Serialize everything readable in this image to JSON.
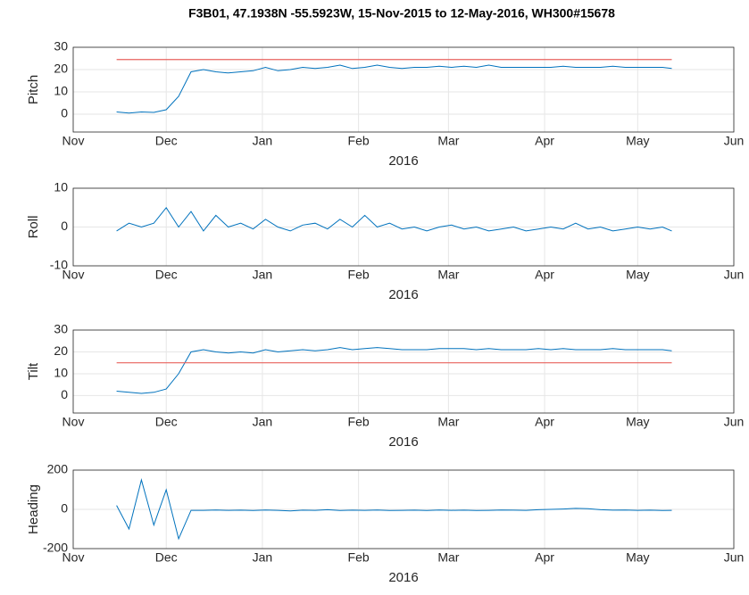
{
  "chart_data": [
    {
      "type": "line",
      "title": "F3B01, 47.1938N -55.5923W, 15-Nov-2015 to 12-May-2016, WH300#15678",
      "ylabel": "Pitch",
      "xlabel": "2016",
      "x": [
        14,
        18,
        22,
        26,
        30,
        34,
        38,
        42,
        46,
        50,
        54,
        58,
        62,
        66,
        70,
        74,
        78,
        82,
        86,
        90,
        94,
        98,
        102,
        106,
        110,
        114,
        118,
        122,
        126,
        130,
        134,
        138,
        142,
        146,
        150,
        154,
        158,
        162,
        166,
        170,
        174,
        178,
        182,
        186,
        190,
        193
      ],
      "series": [
        {
          "color": "#0072bd",
          "values": [
            1,
            0.5,
            1,
            0.8,
            2,
            8,
            19,
            20,
            19,
            18.5,
            19,
            19.5,
            21,
            19.5,
            20,
            21,
            20.5,
            21,
            22,
            20.5,
            21,
            22,
            21,
            20.5,
            21,
            21,
            21.5,
            21,
            21.5,
            21,
            22,
            21,
            21,
            21,
            21,
            21,
            21.5,
            21,
            21,
            21,
            21.5,
            21,
            21,
            21,
            21,
            20.5
          ]
        }
      ],
      "hline": {
        "value": 24.5,
        "color": "#e8625e"
      },
      "xlim": [
        0,
        213
      ],
      "xticks": [
        {
          "value": 0,
          "label": "Nov"
        },
        {
          "value": 30,
          "label": "Dec"
        },
        {
          "value": 61,
          "label": "Jan"
        },
        {
          "value": 92,
          "label": "Feb"
        },
        {
          "value": 121,
          "label": "Mar"
        },
        {
          "value": 152,
          "label": "Apr"
        },
        {
          "value": 182,
          "label": "May"
        },
        {
          "value": 213,
          "label": "Jun"
        }
      ],
      "ylim": [
        -8,
        30
      ],
      "yticks": [
        0,
        10,
        20,
        30
      ],
      "grid": true
    },
    {
      "type": "line",
      "ylabel": "Roll",
      "xlabel": "2016",
      "x": [
        14,
        18,
        22,
        26,
        30,
        34,
        38,
        42,
        46,
        50,
        54,
        58,
        62,
        66,
        70,
        74,
        78,
        82,
        86,
        90,
        94,
        98,
        102,
        106,
        110,
        114,
        118,
        122,
        126,
        130,
        134,
        138,
        142,
        146,
        150,
        154,
        158,
        162,
        166,
        170,
        174,
        178,
        182,
        186,
        190,
        193
      ],
      "series": [
        {
          "color": "#0072bd",
          "values": [
            -1,
            1,
            0,
            1,
            5,
            0,
            4,
            -1,
            3,
            0,
            1,
            -0.5,
            2,
            0,
            -1,
            0.5,
            1,
            -0.5,
            2,
            0,
            3,
            0,
            1,
            -0.5,
            0,
            -1,
            0,
            0.5,
            -0.5,
            0,
            -1,
            -0.5,
            0,
            -1,
            -0.5,
            0,
            -0.5,
            1,
            -0.5,
            0,
            -1,
            -0.5,
            0,
            -0.5,
            0,
            -1
          ]
        }
      ],
      "xlim": [
        0,
        213
      ],
      "xticks": [
        {
          "value": 0,
          "label": "Nov"
        },
        {
          "value": 30,
          "label": "Dec"
        },
        {
          "value": 61,
          "label": "Jan"
        },
        {
          "value": 92,
          "label": "Feb"
        },
        {
          "value": 121,
          "label": "Mar"
        },
        {
          "value": 152,
          "label": "Apr"
        },
        {
          "value": 182,
          "label": "May"
        },
        {
          "value": 213,
          "label": "Jun"
        }
      ],
      "ylim": [
        -10,
        10
      ],
      "yticks": [
        -10,
        0,
        10
      ],
      "grid": true
    },
    {
      "type": "line",
      "ylabel": "Tilt",
      "xlabel": "2016",
      "x": [
        14,
        18,
        22,
        26,
        30,
        34,
        38,
        42,
        46,
        50,
        54,
        58,
        62,
        66,
        70,
        74,
        78,
        82,
        86,
        90,
        94,
        98,
        102,
        106,
        110,
        114,
        118,
        122,
        126,
        130,
        134,
        138,
        142,
        146,
        150,
        154,
        158,
        162,
        166,
        170,
        174,
        178,
        182,
        186,
        190,
        193
      ],
      "series": [
        {
          "color": "#0072bd",
          "values": [
            2,
            1.5,
            1,
            1.5,
            3,
            10,
            20,
            21,
            20,
            19.5,
            20,
            19.5,
            21,
            20,
            20.5,
            21,
            20.5,
            21,
            22,
            21,
            21.5,
            22,
            21.5,
            21,
            21,
            21,
            21.5,
            21.5,
            21.5,
            21,
            21.5,
            21,
            21,
            21,
            21.5,
            21,
            21.5,
            21,
            21,
            21,
            21.5,
            21,
            21,
            21,
            21,
            20.5
          ]
        }
      ],
      "hline": {
        "value": 15,
        "color": "#e8625e"
      },
      "xlim": [
        0,
        213
      ],
      "xticks": [
        {
          "value": 0,
          "label": "Nov"
        },
        {
          "value": 30,
          "label": "Dec"
        },
        {
          "value": 61,
          "label": "Jan"
        },
        {
          "value": 92,
          "label": "Feb"
        },
        {
          "value": 121,
          "label": "Mar"
        },
        {
          "value": 152,
          "label": "Apr"
        },
        {
          "value": 182,
          "label": "May"
        },
        {
          "value": 213,
          "label": "Jun"
        }
      ],
      "ylim": [
        -8,
        30
      ],
      "yticks": [
        0,
        10,
        20,
        30
      ],
      "grid": true
    },
    {
      "type": "line",
      "ylabel": "Heading",
      "xlabel": "2016",
      "x": [
        14,
        18,
        22,
        26,
        30,
        34,
        38,
        42,
        46,
        50,
        54,
        58,
        62,
        66,
        70,
        74,
        78,
        82,
        86,
        90,
        94,
        98,
        102,
        106,
        110,
        114,
        118,
        122,
        126,
        130,
        134,
        138,
        142,
        146,
        150,
        154,
        158,
        162,
        166,
        170,
        174,
        178,
        182,
        186,
        190,
        193
      ],
      "series": [
        {
          "color": "#0072bd",
          "values": [
            20,
            -100,
            150,
            -80,
            100,
            -150,
            -5,
            -5,
            -3,
            -5,
            -4,
            -6,
            -3,
            -5,
            -8,
            -4,
            -5,
            -2,
            -6,
            -4,
            -5,
            -3,
            -6,
            -5,
            -4,
            -6,
            -3,
            -5,
            -4,
            -6,
            -5,
            -3,
            -4,
            -5,
            -2,
            0,
            2,
            5,
            3,
            -2,
            -4,
            -3,
            -5,
            -4,
            -6,
            -5
          ]
        }
      ],
      "xlim": [
        0,
        213
      ],
      "xticks": [
        {
          "value": 0,
          "label": "Nov"
        },
        {
          "value": 30,
          "label": "Dec"
        },
        {
          "value": 61,
          "label": "Jan"
        },
        {
          "value": 92,
          "label": "Feb"
        },
        {
          "value": 121,
          "label": "Mar"
        },
        {
          "value": 152,
          "label": "Apr"
        },
        {
          "value": 182,
          "label": "May"
        },
        {
          "value": 213,
          "label": "Jun"
        }
      ],
      "ylim": [
        -200,
        200
      ],
      "yticks": [
        -200,
        0,
        200
      ],
      "grid": true
    }
  ]
}
